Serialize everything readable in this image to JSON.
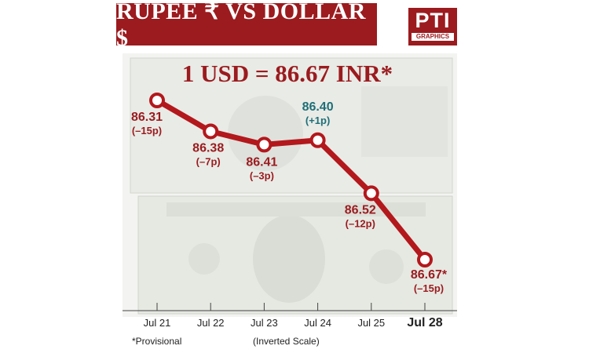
{
  "header": {
    "title": "RUPEE ₹   VS   DOLLAR $",
    "logo_text": "PTI",
    "logo_sub": "GRAPHICS"
  },
  "headline": "1 USD = 86.67 INR*",
  "footnote": "*Provisional",
  "scale_note": "(Inverted Scale)",
  "colors": {
    "accent": "#9b1b1f",
    "up_label": "#1f6f78",
    "line": "#b3181c"
  },
  "chart_data": {
    "type": "line",
    "title": "RUPEE ₹   VS   DOLLAR $",
    "subtitle": "1 USD = 86.67 INR*",
    "y_inverted": true,
    "categories": [
      "Jul 21",
      "Jul 22",
      "Jul 23",
      "Jul 24",
      "Jul 25",
      "Jul 28"
    ],
    "series": [
      {
        "values": [
          86.31,
          86.38,
          86.41,
          86.4,
          86.52,
          86.67
        ],
        "value_labels": [
          "86.31",
          "86.38",
          "86.41",
          "86.40",
          "86.52",
          "86.67*"
        ],
        "change_labels": [
          "(–15p)",
          "(–7p)",
          "(–3p)",
          "(+1p)",
          "(–12p)",
          "(–15p)"
        ]
      }
    ],
    "grid": false,
    "legend": "none"
  }
}
